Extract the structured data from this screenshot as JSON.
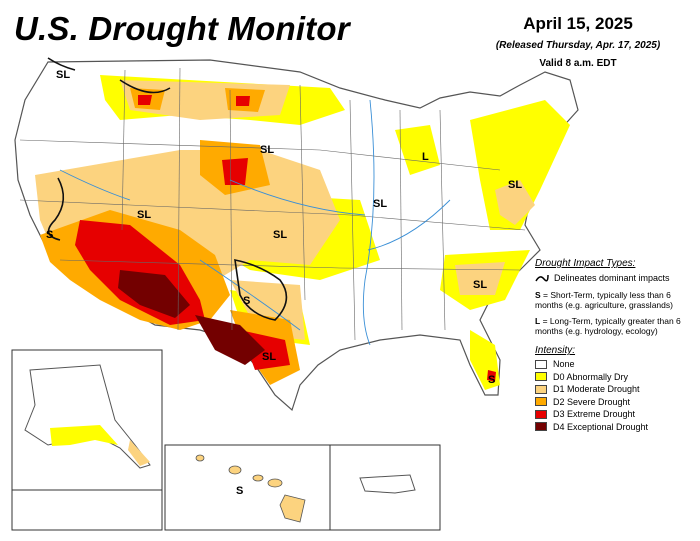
{
  "header": {
    "title": "U.S. Drought Monitor",
    "date": "April 15, 2025",
    "released": "(Released Thursday, Apr. 17, 2025)",
    "valid": "Valid 8 a.m. EDT"
  },
  "impact_legend": {
    "heading": "Drought Impact Types:",
    "boundary_label": "Delineates dominant impacts",
    "short_term_key": "S",
    "short_term_text": "= Short-Term, typically less than 6 months (e.g. agriculture, grasslands)",
    "long_term_key": "L",
    "long_term_text": "= Long-Term, typically greater than 6 months (e.g. hydrology, ecology)"
  },
  "intensity_legend": {
    "heading": "Intensity:",
    "items": [
      {
        "label": "None",
        "color": "#ffffff"
      },
      {
        "label": "D0 Abnormally Dry",
        "color": "#ffff00"
      },
      {
        "label": "D1 Moderate Drought",
        "color": "#fcd37f"
      },
      {
        "label": "D2 Severe Drought",
        "color": "#ffaa00"
      },
      {
        "label": "D3 Extreme Drought",
        "color": "#e60000"
      },
      {
        "label": "D4 Exceptional Drought",
        "color": "#730000"
      }
    ]
  },
  "map_labels": {
    "sl_pnw": "SL",
    "sl_west": "SL",
    "sl_plains": "SL",
    "sl_midwest": "SL",
    "s_california": "S",
    "sl_kansas": "SL",
    "s_texas": "S",
    "sl_texas": "SL",
    "l_michigan": "L",
    "sl_northeast": "SL",
    "sl_carolina": "SL",
    "s_florida": "S",
    "s_hawaii": "S"
  }
}
